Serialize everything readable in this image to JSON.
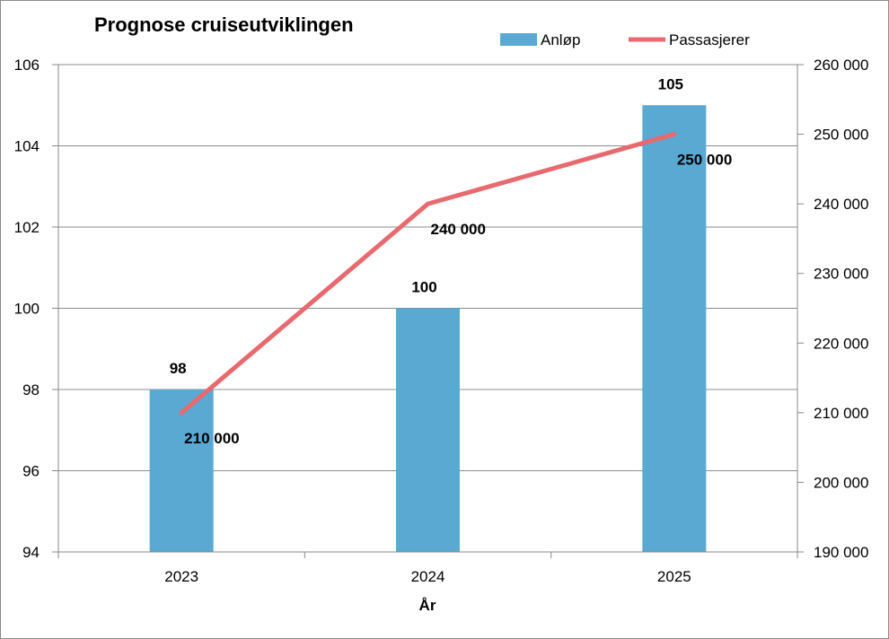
{
  "chart_data": {
    "type": "bar",
    "title": "Prognose cruiseutviklingen",
    "xlabel": "År",
    "ylabel": "",
    "y2label": "",
    "categories": [
      "2023",
      "2024",
      "2025"
    ],
    "series": [
      {
        "name": "Anløp",
        "type": "bar",
        "axis": "left",
        "values": [
          98,
          100,
          105
        ],
        "color": "#5aa9d3",
        "labels": [
          "98",
          "100",
          "105"
        ]
      },
      {
        "name": "Passasjerer",
        "type": "line",
        "axis": "right",
        "values": [
          210000,
          240000,
          250000
        ],
        "color": "#e8696e",
        "labels": [
          "210 000",
          "240 000",
          "250 000"
        ]
      }
    ],
    "ylim": [
      94,
      106
    ],
    "yticks": [
      "94",
      "96",
      "98",
      "100",
      "102",
      "104",
      "106"
    ],
    "y2lim": [
      190000,
      260000
    ],
    "y2ticks": [
      "190 000",
      "200 000",
      "210 000",
      "220 000",
      "230 000",
      "240 000",
      "250 000",
      "260 000"
    ],
    "grid": true,
    "legend_position": "top-right"
  }
}
